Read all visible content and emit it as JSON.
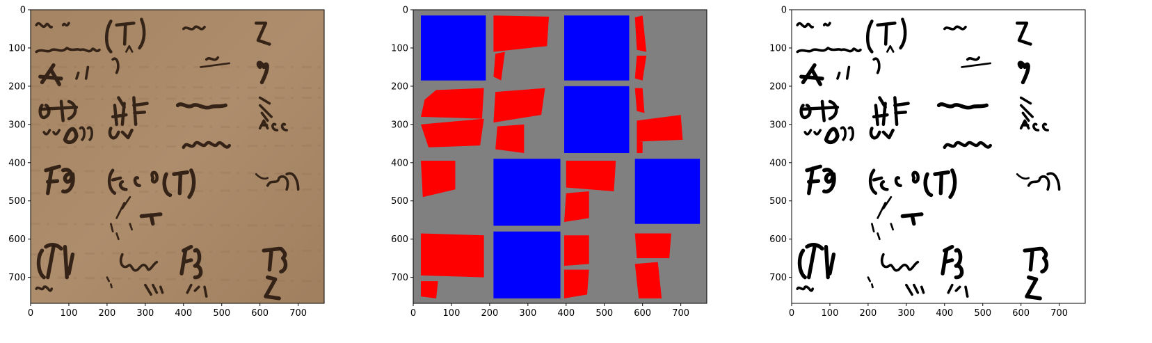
{
  "figure": {
    "panels": [
      {
        "name": "document-photo-panel",
        "kind": "photo",
        "x_ticks": [
          "0",
          "100",
          "200",
          "300",
          "400",
          "500",
          "600",
          "700"
        ],
        "y_ticks": [
          "0",
          "100",
          "200",
          "300",
          "400",
          "500",
          "600",
          "700"
        ]
      },
      {
        "name": "segmentation-map-panel",
        "kind": "segmentation",
        "x_ticks": [
          "0",
          "100",
          "200",
          "300",
          "400",
          "500",
          "600",
          "700"
        ],
        "y_ticks": [
          "0",
          "100",
          "200",
          "300",
          "400",
          "500",
          "600",
          "700"
        ]
      },
      {
        "name": "binarized-text-panel",
        "kind": "binary",
        "x_ticks": [
          "0",
          "100",
          "200",
          "300",
          "400",
          "500",
          "600",
          "700"
        ],
        "y_ticks": [
          "0",
          "100",
          "200",
          "300",
          "400",
          "500",
          "600",
          "700"
        ]
      }
    ],
    "image_extent": [
      0,
      768
    ],
    "colors": {
      "parchment": "#a98866",
      "parchment_dark": "#8f6f52",
      "ink_dark": "#2a1a10",
      "segment_background": "#808080",
      "blue_region": "#0000ff",
      "red_region": "#ff0000",
      "binary_background": "#ffffff",
      "binary_ink": "#000000"
    }
  }
}
